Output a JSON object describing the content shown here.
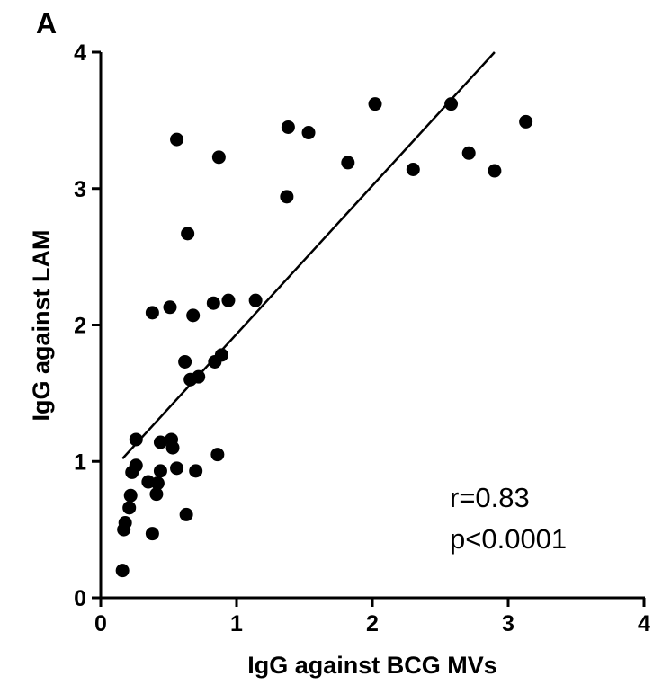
{
  "panel_label": "A",
  "stats": {
    "r": "r=0.83",
    "p": "p<0.0001"
  },
  "chart_data": {
    "type": "scatter",
    "xlabel": "IgG against BCG MVs",
    "ylabel": "IgG against LAM",
    "xlim": [
      0,
      4
    ],
    "ylim": [
      0,
      4
    ],
    "xticks": [
      0,
      1,
      2,
      3,
      4
    ],
    "yticks": [
      0,
      1,
      2,
      3,
      4
    ],
    "grid": false,
    "points": [
      {
        "x": 0.16,
        "y": 0.2
      },
      {
        "x": 0.17,
        "y": 0.5
      },
      {
        "x": 0.18,
        "y": 0.55
      },
      {
        "x": 0.21,
        "y": 0.66
      },
      {
        "x": 0.22,
        "y": 0.75
      },
      {
        "x": 0.23,
        "y": 0.92
      },
      {
        "x": 0.26,
        "y": 0.97
      },
      {
        "x": 0.26,
        "y": 1.16
      },
      {
        "x": 0.35,
        "y": 0.85
      },
      {
        "x": 0.38,
        "y": 0.47
      },
      {
        "x": 0.38,
        "y": 2.09
      },
      {
        "x": 0.41,
        "y": 0.76
      },
      {
        "x": 0.42,
        "y": 0.84
      },
      {
        "x": 0.44,
        "y": 0.93
      },
      {
        "x": 0.44,
        "y": 1.14
      },
      {
        "x": 0.51,
        "y": 2.13
      },
      {
        "x": 0.52,
        "y": 1.16
      },
      {
        "x": 0.53,
        "y": 1.1
      },
      {
        "x": 0.56,
        "y": 0.95
      },
      {
        "x": 0.56,
        "y": 3.36
      },
      {
        "x": 0.62,
        "y": 1.73
      },
      {
        "x": 0.63,
        "y": 0.61
      },
      {
        "x": 0.64,
        "y": 2.67
      },
      {
        "x": 0.66,
        "y": 1.6
      },
      {
        "x": 0.68,
        "y": 2.07
      },
      {
        "x": 0.7,
        "y": 0.93
      },
      {
        "x": 0.72,
        "y": 1.62
      },
      {
        "x": 0.83,
        "y": 2.16
      },
      {
        "x": 0.84,
        "y": 1.73
      },
      {
        "x": 0.86,
        "y": 1.05
      },
      {
        "x": 0.87,
        "y": 3.23
      },
      {
        "x": 0.89,
        "y": 1.78
      },
      {
        "x": 0.94,
        "y": 2.18
      },
      {
        "x": 1.14,
        "y": 2.18
      },
      {
        "x": 1.37,
        "y": 2.94
      },
      {
        "x": 1.38,
        "y": 3.45
      },
      {
        "x": 1.53,
        "y": 3.41
      },
      {
        "x": 1.82,
        "y": 3.19
      },
      {
        "x": 2.02,
        "y": 3.62
      },
      {
        "x": 2.3,
        "y": 3.14
      },
      {
        "x": 2.58,
        "y": 3.62
      },
      {
        "x": 2.71,
        "y": 3.26
      },
      {
        "x": 2.9,
        "y": 3.13
      },
      {
        "x": 3.13,
        "y": 3.49
      }
    ],
    "regression_line": {
      "x": [
        0.16,
        2.9
      ],
      "y": [
        1.02,
        4.0
      ]
    }
  }
}
